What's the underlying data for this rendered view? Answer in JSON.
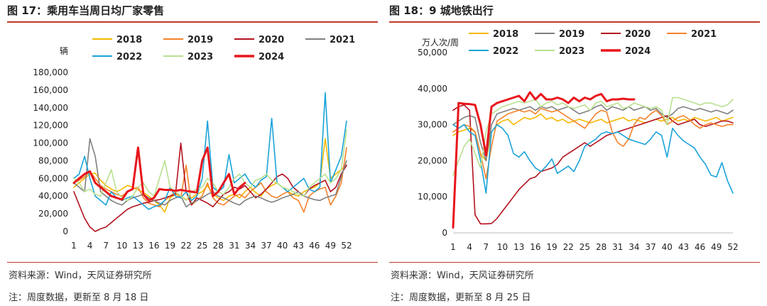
{
  "charts": [
    {
      "title": "图 17：乘用车当周日均厂家零售",
      "source": "资料来源：Wind，天风证券研究所",
      "note": "注：周度数据，更新至 8 月 18 日"
    },
    {
      "title": "图 18：9 城地铁出行",
      "source": "资料来源：Wind，天风证券研究所",
      "note": "注：周度数据，更新至 8 月 25 日"
    }
  ],
  "chart_data": [
    {
      "type": "line",
      "title": "图 17：乘用车当周日均厂家零售",
      "ylabel": "辆",
      "xlabel": "",
      "ylim": [
        0,
        180000
      ],
      "yticks": [
        0,
        20000,
        40000,
        60000,
        80000,
        100000,
        120000,
        140000,
        160000,
        180000
      ],
      "ytick_labels": [
        "0",
        "20,000",
        "40,000",
        "60,000",
        "80,000",
        "100,000",
        "120,000",
        "140,000",
        "160,000",
        "180,000"
      ],
      "x_ticks": [
        1,
        4,
        7,
        10,
        13,
        16,
        19,
        22,
        25,
        28,
        31,
        34,
        37,
        40,
        43,
        46,
        49,
        52
      ],
      "grid": false,
      "legend": "top",
      "series": [
        {
          "name": "2018",
          "color": "#f5b800",
          "width": 1.6,
          "start": 1,
          "values": [
            50000,
            55000,
            60000,
            65000,
            66000,
            58000,
            52000,
            48000,
            45000,
            48000,
            52000,
            50000,
            47000,
            44000,
            40000,
            35000,
            30000,
            22000,
            38000,
            42000,
            40000,
            36000,
            38000,
            42000,
            45000,
            52000,
            42000,
            38000,
            35000,
            40000,
            42000,
            38000,
            45000,
            50000,
            44000,
            40000,
            48000,
            52000,
            55000,
            50000,
            45000,
            42000,
            40000,
            45000,
            48000,
            50000,
            55000,
            105000,
            60000,
            65000,
            70000,
            75000
          ]
        },
        {
          "name": "2019",
          "color": "#f5822a",
          "width": 1.6,
          "start": 1,
          "values": [
            55000,
            58000,
            62000,
            68000,
            60000,
            52000,
            48000,
            45000,
            42000,
            40000,
            45000,
            48000,
            50000,
            38000,
            32000,
            30000,
            28000,
            35000,
            40000,
            45000,
            38000,
            75000,
            30000,
            35000,
            40000,
            55000,
            38000,
            32000,
            30000,
            35000,
            40000,
            42000,
            38000,
            45000,
            50000,
            55000,
            45000,
            40000,
            38000,
            42000,
            45000,
            38000,
            35000,
            22000,
            40000,
            45000,
            48000,
            50000,
            30000,
            40000,
            55000,
            95000
          ]
        },
        {
          "name": "2020",
          "color": "#b3121f",
          "width": 1.6,
          "start": 1,
          "values": [
            45000,
            30000,
            15000,
            5000,
            0,
            3000,
            5000,
            10000,
            15000,
            20000,
            25000,
            28000,
            30000,
            32000,
            33000,
            35000,
            36000,
            38000,
            40000,
            42000,
            100000,
            45000,
            30000,
            38000,
            35000,
            32000,
            28000,
            35000,
            42000,
            45000,
            50000,
            48000,
            52000,
            45000,
            38000,
            42000,
            48000,
            55000,
            62000,
            65000,
            60000,
            50000,
            45000,
            40000,
            48000,
            52000,
            55000,
            58000,
            45000,
            50000,
            65000,
            75000
          ]
        },
        {
          "name": "2021",
          "color": "#7f7f7f",
          "width": 1.6,
          "start": 1,
          "values": [
            55000,
            50000,
            45000,
            105000,
            85000,
            45000,
            40000,
            35000,
            32000,
            30000,
            35000,
            38000,
            40000,
            42000,
            38000,
            35000,
            32000,
            30000,
            35000,
            38000,
            40000,
            28000,
            32000,
            35000,
            38000,
            42000,
            45000,
            40000,
            38000,
            35000,
            32000,
            30000,
            35000,
            38000,
            40000,
            38000,
            35000,
            33000,
            35000,
            38000,
            40000,
            42000,
            45000,
            40000,
            38000,
            36000,
            35000,
            38000,
            40000,
            42000,
            62000,
            80000
          ]
        },
        {
          "name": "2022",
          "color": "#1aa3d9",
          "width": 1.6,
          "start": 1,
          "values": [
            60000,
            65000,
            85000,
            60000,
            40000,
            35000,
            30000,
            45000,
            38000,
            35000,
            38000,
            40000,
            35000,
            30000,
            25000,
            28000,
            30000,
            35000,
            50000,
            40000,
            38000,
            45000,
            35000,
            40000,
            60000,
            125000,
            50000,
            45000,
            50000,
            87000,
            55000,
            60000,
            65000,
            55000,
            50000,
            58000,
            62000,
            128000,
            55000,
            50000,
            45000,
            50000,
            55000,
            60000,
            48000,
            45000,
            50000,
            157000,
            55000,
            70000,
            85000,
            125000
          ]
        },
        {
          "name": "2023",
          "color": "#b9e08f",
          "width": 1.6,
          "start": 1,
          "values": [
            60000,
            55000,
            45000,
            48000,
            42000,
            40000,
            55000,
            70000,
            45000,
            38000,
            35000,
            40000,
            50000,
            55000,
            45000,
            40000,
            60000,
            80000,
            50000,
            45000,
            40000,
            35000,
            45000,
            48000,
            50000,
            60000,
            55000,
            45000,
            42000,
            50000,
            60000,
            65000,
            55000,
            50000,
            58000,
            60000,
            65000,
            58000,
            55000,
            50000,
            48000,
            45000,
            42000,
            40000,
            50000,
            55000,
            60000,
            65000,
            55000,
            60000,
            70000,
            115000
          ]
        },
        {
          "name": "2024",
          "color": "#e8151b",
          "width": 3,
          "start": 1,
          "values": [
            55000,
            60000,
            65000,
            68000,
            55000,
            50000,
            45000,
            40000,
            38000,
            36000,
            45000,
            48000,
            95000,
            42000,
            35000,
            38000,
            48000,
            47000,
            47000,
            46000,
            47000,
            46000,
            45000,
            44000,
            80000,
            95000,
            40000,
            45000,
            55000,
            65000,
            42000,
            50000,
            55000
          ]
        }
      ]
    },
    {
      "type": "line",
      "title": "图 18：9 城地铁出行",
      "ylabel": "万人次/周",
      "xlabel": "",
      "ylim": [
        0,
        50000
      ],
      "yticks": [
        0,
        10000,
        20000,
        30000,
        40000,
        50000
      ],
      "ytick_labels": [
        "0",
        "10,000",
        "20,000",
        "30,000",
        "40,000",
        "50,000"
      ],
      "x_ticks": [
        1,
        4,
        7,
        10,
        13,
        16,
        19,
        22,
        25,
        28,
        31,
        34,
        37,
        40,
        43,
        46,
        49,
        52
      ],
      "grid": false,
      "legend": "top",
      "series": [
        {
          "name": "2018",
          "color": "#f5b800",
          "width": 1.6,
          "start": 1,
          "values": [
            27000,
            28000,
            28500,
            29000,
            28000,
            22000,
            20000,
            28000,
            30000,
            31000,
            31500,
            30000,
            31000,
            32000,
            31500,
            32000,
            33000,
            31500,
            32000,
            31000,
            31500,
            30500,
            31000,
            31500,
            31000,
            30500,
            31000,
            31500,
            30500,
            31000,
            31500,
            32000,
            31000,
            31500,
            31000,
            30500,
            31000,
            31500,
            31000,
            31500,
            32000,
            31000,
            31500,
            31000,
            32000,
            31500,
            31000,
            31500,
            32000,
            31000,
            31500,
            32000
          ]
        },
        {
          "name": "2019",
          "color": "#7f7f7f",
          "width": 1.6,
          "start": 1,
          "values": [
            30000,
            31000,
            32000,
            32500,
            32000,
            25000,
            20000,
            30000,
            33000,
            33500,
            34000,
            34500,
            34000,
            34500,
            35000,
            34000,
            35000,
            34500,
            35000,
            34000,
            34500,
            35000,
            34000,
            33000,
            33500,
            34000,
            35000,
            35500,
            34000,
            35000,
            34500,
            34000,
            35000,
            34000,
            34500,
            35000,
            34000,
            34500,
            33000,
            32000,
            33000,
            34500,
            35000,
            34500,
            34000,
            34500,
            34000,
            33500,
            34000,
            33500,
            33000,
            34000
          ]
        },
        {
          "name": "2020",
          "color": "#b3121f",
          "width": 1.6,
          "start": 1,
          "values": [
            34000,
            35000,
            35500,
            34000,
            5000,
            2500,
            2500,
            2600,
            4000,
            6000,
            8000,
            10000,
            12000,
            13500,
            15000,
            15500,
            17000,
            17500,
            18000,
            19000,
            21000,
            22000,
            23000,
            24000,
            25000,
            24000,
            25000,
            26000,
            27000,
            27500,
            28000,
            28500,
            29000,
            29500,
            30000,
            30500,
            31000,
            31500,
            32000,
            32500,
            31000,
            30000,
            30500,
            31000,
            31500,
            30000,
            29500,
            30000,
            30500,
            31000,
            31000,
            30500
          ]
        },
        {
          "name": "2021",
          "color": "#f5822a",
          "width": 1.6,
          "start": 1,
          "values": [
            28000,
            29000,
            30000,
            29500,
            28000,
            22000,
            15000,
            24000,
            31000,
            32000,
            33000,
            33500,
            34000,
            33500,
            34000,
            33000,
            34500,
            34000,
            33500,
            34000,
            33000,
            32000,
            31000,
            30000,
            29000,
            31000,
            33000,
            34000,
            33500,
            28000,
            25000,
            24000,
            26000,
            30000,
            32000,
            31500,
            33000,
            34000,
            32500,
            30000,
            31000,
            32000,
            32500,
            31500,
            30000,
            29000,
            30000,
            30500,
            30000,
            29500,
            30000,
            30000
          ]
        },
        {
          "name": "2022",
          "color": "#1aa3d9",
          "width": 1.6,
          "start": 1,
          "values": [
            30000,
            29000,
            30000,
            28000,
            27000,
            20000,
            11000,
            28000,
            30000,
            29000,
            27000,
            22000,
            21000,
            22500,
            20000,
            18000,
            17000,
            18500,
            20500,
            16500,
            17500,
            18500,
            17000,
            20000,
            24000,
            25000,
            26000,
            27500,
            28000,
            27500,
            28000,
            27000,
            26000,
            25500,
            25000,
            24500,
            26000,
            28000,
            27000,
            21000,
            29000,
            27000,
            25500,
            24500,
            23500,
            21000,
            19000,
            16000,
            15500,
            19500,
            14500,
            11000
          ]
        },
        {
          "name": "2023",
          "color": "#b9e08f",
          "width": 1.6,
          "start": 1,
          "values": [
            16000,
            20000,
            24000,
            26000,
            22000,
            18000,
            28000,
            33000,
            34000,
            35000,
            35500,
            36000,
            36500,
            36000,
            36500,
            37000,
            35000,
            36000,
            36500,
            35500,
            36000,
            35000,
            34500,
            35000,
            35500,
            34000,
            36000,
            36500,
            35000,
            35500,
            36000,
            34500,
            35000,
            36000,
            35500,
            35000,
            34500,
            35000,
            34000,
            30000,
            37500,
            37500,
            37000,
            36500,
            36000,
            35500,
            36000,
            36000,
            35500,
            35000,
            35500,
            37000
          ]
        },
        {
          "name": "2024",
          "color": "#e8151b",
          "width": 3,
          "start": 1,
          "values": [
            1500,
            36000,
            35800,
            35700,
            35500,
            30000,
            21500,
            35000,
            36000,
            36500,
            37000,
            37500,
            38000,
            36500,
            39000,
            37000,
            38500,
            37000,
            37000,
            37500,
            37000,
            36000,
            37500,
            36500,
            37500,
            37000,
            38000,
            38500,
            36500,
            37000,
            37000,
            37200,
            37000,
            37000
          ]
        }
      ]
    }
  ]
}
